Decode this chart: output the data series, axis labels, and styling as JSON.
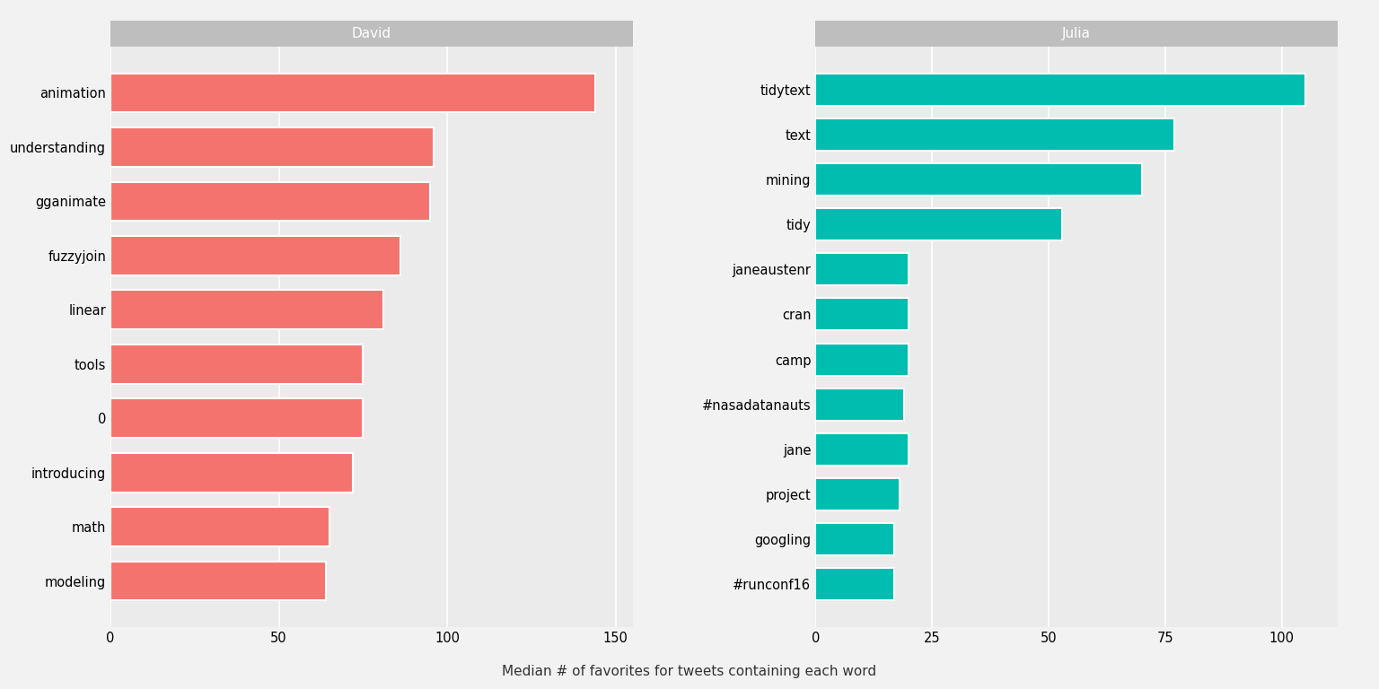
{
  "david_labels": [
    "animation",
    "understanding",
    "gganimate",
    "fuzzyjoin",
    "linear",
    "tools",
    "0",
    "introducing",
    "math",
    "modeling"
  ],
  "david_values": [
    144,
    96,
    95,
    86,
    81,
    75,
    75,
    72,
    65,
    64
  ],
  "julia_labels": [
    "tidytext",
    "text",
    "mining",
    "tidy",
    "janeaustenr",
    "cran",
    "camp",
    "#nasadatanauts",
    "jane",
    "project",
    "googling",
    "#runconf16"
  ],
  "julia_values": [
    105,
    77,
    70,
    53,
    20,
    20,
    20,
    19,
    20,
    18,
    17,
    17
  ],
  "david_color": "#F4736E",
  "julia_color": "#00BDB0",
  "fig_background": "#F2F2F2",
  "panel_background": "#EBEBEB",
  "title_david": "David",
  "title_julia": "Julia",
  "xlabel": "Median # of favorites for tweets containing each word",
  "david_xlim": [
    0,
    155
  ],
  "julia_xlim": [
    0,
    112
  ],
  "david_xticks": [
    0,
    50,
    100,
    150
  ],
  "julia_xticks": [
    0,
    25,
    50,
    75,
    100
  ],
  "strip_bg_color": "#BEBEBE",
  "strip_text_color": "#FFFFFF",
  "grid_color": "#FFFFFF",
  "label_fontsize": 10.5,
  "title_fontsize": 11,
  "xlabel_fontsize": 11
}
